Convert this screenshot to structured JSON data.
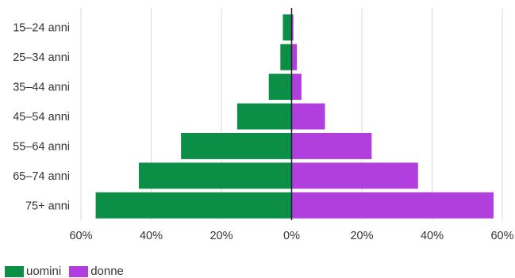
{
  "colors": {
    "men": "#0b8f47",
    "women": "#b13fde",
    "grid": "#d9d9d9",
    "axis": "#222222",
    "text": "#333333"
  },
  "chart_data": {
    "type": "bar",
    "orientation": "horizontal-diverging",
    "categories": [
      "15–24 anni",
      "25–34 anni",
      "35–44 anni",
      "45–54 anni",
      "55–64 anni",
      "65–74 anni",
      "75+ anni"
    ],
    "series": [
      {
        "name": "uomini",
        "values": [
          2.5,
          3.2,
          6.5,
          15.5,
          31.5,
          43.5,
          55.8
        ]
      },
      {
        "name": "donne",
        "values": [
          0.5,
          1.5,
          2.8,
          9.5,
          22.8,
          36.0,
          57.5
        ]
      }
    ],
    "x_ticks": [
      "60%",
      "40%",
      "20%",
      "0%",
      "20%",
      "40%",
      "60%"
    ],
    "x_tick_values": [
      -60,
      -40,
      -20,
      0,
      20,
      40,
      60
    ],
    "xlim": [
      -60,
      60
    ],
    "grid": true,
    "legend_position": "bottom-left"
  },
  "legend": {
    "men_label": "uomini",
    "women_label": "donne"
  }
}
